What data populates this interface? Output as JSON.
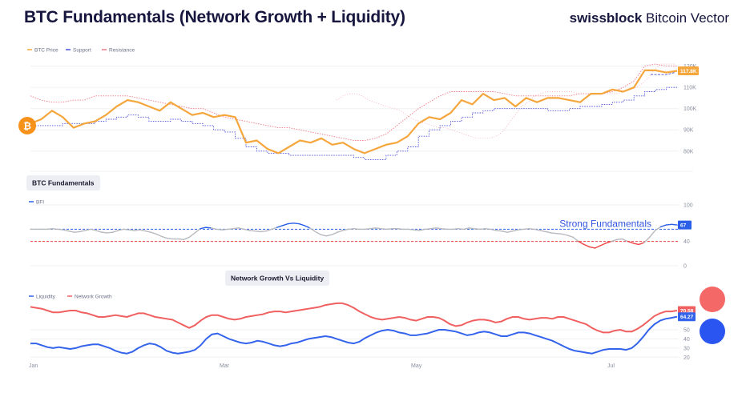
{
  "header": {
    "title": "BTC Fundamentals (Network Growth + Liquidity)",
    "brand_bold": "swissblock",
    "brand_rest": " Bitcoin Vector"
  },
  "colors": {
    "price": "#f5a63c",
    "support": "#4a4fd8",
    "resistance": "#f07b86",
    "bfi": "#2b5fe8",
    "bfi_neutral": "#b7babf",
    "threshold_high": "#2b5fe8",
    "threshold_low": "#ee4444",
    "liquidity": "#3463ec",
    "network": "#f06060",
    "bitcoin_badge": "#f6921a"
  },
  "icons": {
    "bitcoin": "bitcoin-icon",
    "network_dot": "red-circle",
    "liquidity_dot": "blue-circle"
  },
  "chart_data": [
    {
      "type": "line",
      "panel": "price",
      "legend": [
        "BTC Price",
        "Support",
        "Resistance"
      ],
      "yticks": [
        "120K",
        "110K",
        "100K",
        "90K",
        "80K"
      ],
      "ytick_values": [
        120,
        110,
        100,
        90,
        80
      ],
      "ylim": [
        72,
        124
      ],
      "last_label": "117.8K",
      "series": [
        {
          "name": "BTC Price",
          "values": [
            93,
            95,
            99,
            96,
            91,
            93,
            94,
            97,
            101,
            104,
            103,
            101,
            99,
            103,
            100,
            97,
            98,
            96,
            97,
            96,
            84,
            85,
            81,
            79,
            82,
            85,
            84,
            86,
            83,
            84,
            81,
            79,
            81,
            83,
            84,
            87,
            93,
            96,
            95,
            98,
            104,
            102,
            107,
            104,
            105,
            101,
            105,
            103,
            105,
            105,
            104,
            103,
            107,
            107,
            109,
            108,
            110,
            118,
            118,
            117,
            117.8
          ]
        },
        {
          "name": "Support",
          "values": [
            92,
            92,
            92,
            93,
            93,
            93,
            94,
            95,
            96,
            97,
            96,
            94,
            94,
            95,
            94,
            93,
            92,
            90,
            89,
            86,
            82,
            80,
            79,
            79,
            78,
            78,
            78,
            78,
            78,
            78,
            77,
            76,
            76,
            78,
            80,
            82,
            87,
            90,
            92,
            94,
            96,
            98,
            99,
            100,
            100,
            100,
            100,
            100,
            99,
            99,
            100,
            101,
            101,
            102,
            103,
            104,
            106,
            108,
            109,
            110,
            110
          ]
        },
        {
          "name": "Resistance",
          "values": [
            106,
            104,
            103,
            103,
            104,
            104,
            106,
            106,
            106,
            106,
            105,
            104,
            103,
            102,
            101,
            100,
            100,
            98,
            96,
            95,
            94,
            93,
            92,
            91,
            91,
            90,
            89,
            88,
            87,
            86,
            85,
            85,
            86,
            88,
            92,
            96,
            100,
            103,
            106,
            108,
            108,
            108,
            108,
            108,
            107,
            106,
            106,
            106,
            106,
            106,
            106,
            107,
            107,
            107,
            108,
            110,
            113,
            120,
            121,
            120,
            120
          ]
        }
      ],
      "resistance_upper": [
        104,
        106,
        107,
        107,
        106,
        104,
        103,
        102,
        101,
        100,
        99,
        97,
        95,
        94,
        93,
        92,
        91,
        91,
        90,
        89,
        88,
        87,
        86,
        86,
        86,
        87,
        89,
        93,
        97,
        101,
        103,
        106,
        107,
        108,
        108,
        108,
        108,
        108,
        107,
        107,
        107,
        107,
        107,
        107,
        107,
        108,
        109,
        110,
        112,
        115,
        119,
        121,
        121,
        121
      ],
      "support_upper": [
        116,
        116,
        116,
        117
      ],
      "price_x_start_pct": 0.0
    },
    {
      "type": "line",
      "panel": "fundamentals",
      "title": "BTC Fundamentals",
      "legend": [
        "BFI"
      ],
      "yticks": [
        "100",
        "40",
        "0"
      ],
      "ytick_values": [
        100,
        40,
        0
      ],
      "ylim": [
        0,
        100
      ],
      "thresholds": [
        {
          "value": 60,
          "label": "Strong Fundamentals"
        },
        {
          "value": 40,
          "label": ""
        }
      ],
      "last_label": "67",
      "series": [
        {
          "name": "BFI",
          "values": [
            60,
            60,
            60,
            60,
            61,
            60,
            59,
            57,
            55,
            56,
            58,
            60,
            58,
            55,
            54,
            55,
            58,
            60,
            59,
            58,
            59,
            57,
            55,
            52,
            48,
            45,
            44,
            44,
            43,
            47,
            54,
            61,
            63,
            62,
            60,
            59,
            60,
            61,
            62,
            60,
            58,
            57,
            56,
            57,
            60,
            63,
            66,
            69,
            70,
            69,
            66,
            62,
            56,
            51,
            49,
            51,
            55,
            58,
            60,
            61,
            60,
            60,
            61,
            62,
            61,
            60,
            61,
            61,
            60,
            60,
            59,
            58,
            60,
            61,
            62,
            61,
            60,
            60,
            61,
            60,
            62,
            61,
            60,
            61,
            60,
            58,
            57,
            55,
            57,
            59,
            60,
            61,
            60,
            58,
            56,
            54,
            53,
            52,
            50,
            47,
            40,
            35,
            31,
            29,
            33,
            37,
            40,
            43,
            44,
            40,
            37,
            35,
            38,
            47,
            58,
            64,
            67,
            68,
            67
          ]
        }
      ]
    },
    {
      "type": "line",
      "panel": "network_liquidity",
      "title": "Network Growth Vs Liquidity",
      "legend": [
        "Liquidity",
        "Network Growth"
      ],
      "xticks": [
        "Jan",
        "Mar",
        "May",
        "Jul"
      ],
      "yticks": [
        "50",
        "40",
        "30",
        "20"
      ],
      "ytick_values": [
        50,
        40,
        30,
        20
      ],
      "ylim": [
        15,
        85
      ],
      "last_label_network": "70.58",
      "last_label_liquidity": "64.27",
      "series": [
        {
          "name": "Network Growth",
          "values": [
            75,
            74,
            73,
            71,
            69,
            69,
            70,
            71,
            71,
            69,
            68,
            66,
            64,
            64,
            65,
            66,
            65,
            64,
            66,
            68,
            68,
            66,
            64,
            63,
            62,
            61,
            58,
            55,
            52,
            55,
            60,
            64,
            66,
            66,
            64,
            62,
            61,
            62,
            64,
            65,
            66,
            67,
            69,
            70,
            70,
            69,
            70,
            71,
            72,
            73,
            74,
            75,
            77,
            78,
            79,
            79,
            77,
            74,
            70,
            67,
            64,
            62,
            61,
            62,
            63,
            64,
            63,
            61,
            60,
            62,
            64,
            64,
            63,
            60,
            56,
            54,
            55,
            58,
            60,
            61,
            61,
            60,
            58,
            59,
            62,
            64,
            64,
            62,
            61,
            62,
            63,
            63,
            62,
            64,
            64,
            62,
            60,
            58,
            56,
            52,
            49,
            47,
            47,
            49,
            50,
            48,
            48,
            51,
            55,
            60,
            65,
            68,
            70,
            70,
            71
          ]
        },
        {
          "name": "Liquidity",
          "values": [
            35,
            35,
            33,
            31,
            30,
            31,
            30,
            29,
            30,
            32,
            33,
            34,
            34,
            32,
            30,
            27,
            25,
            24,
            26,
            30,
            33,
            35,
            34,
            31,
            27,
            25,
            24,
            25,
            26,
            28,
            33,
            40,
            45,
            46,
            43,
            40,
            38,
            36,
            35,
            36,
            38,
            37,
            35,
            33,
            32,
            33,
            35,
            36,
            38,
            40,
            41,
            42,
            43,
            42,
            40,
            38,
            36,
            35,
            37,
            41,
            44,
            47,
            49,
            50,
            49,
            47,
            46,
            44,
            44,
            45,
            46,
            48,
            50,
            50,
            49,
            48,
            46,
            44,
            45,
            47,
            48,
            47,
            45,
            43,
            43,
            45,
            47,
            47,
            46,
            44,
            42,
            40,
            38,
            35,
            32,
            29,
            27,
            26,
            25,
            24,
            26,
            28,
            29,
            29,
            29,
            28,
            30,
            35,
            42,
            50,
            56,
            60,
            62,
            63,
            64.27
          ]
        }
      ]
    }
  ]
}
